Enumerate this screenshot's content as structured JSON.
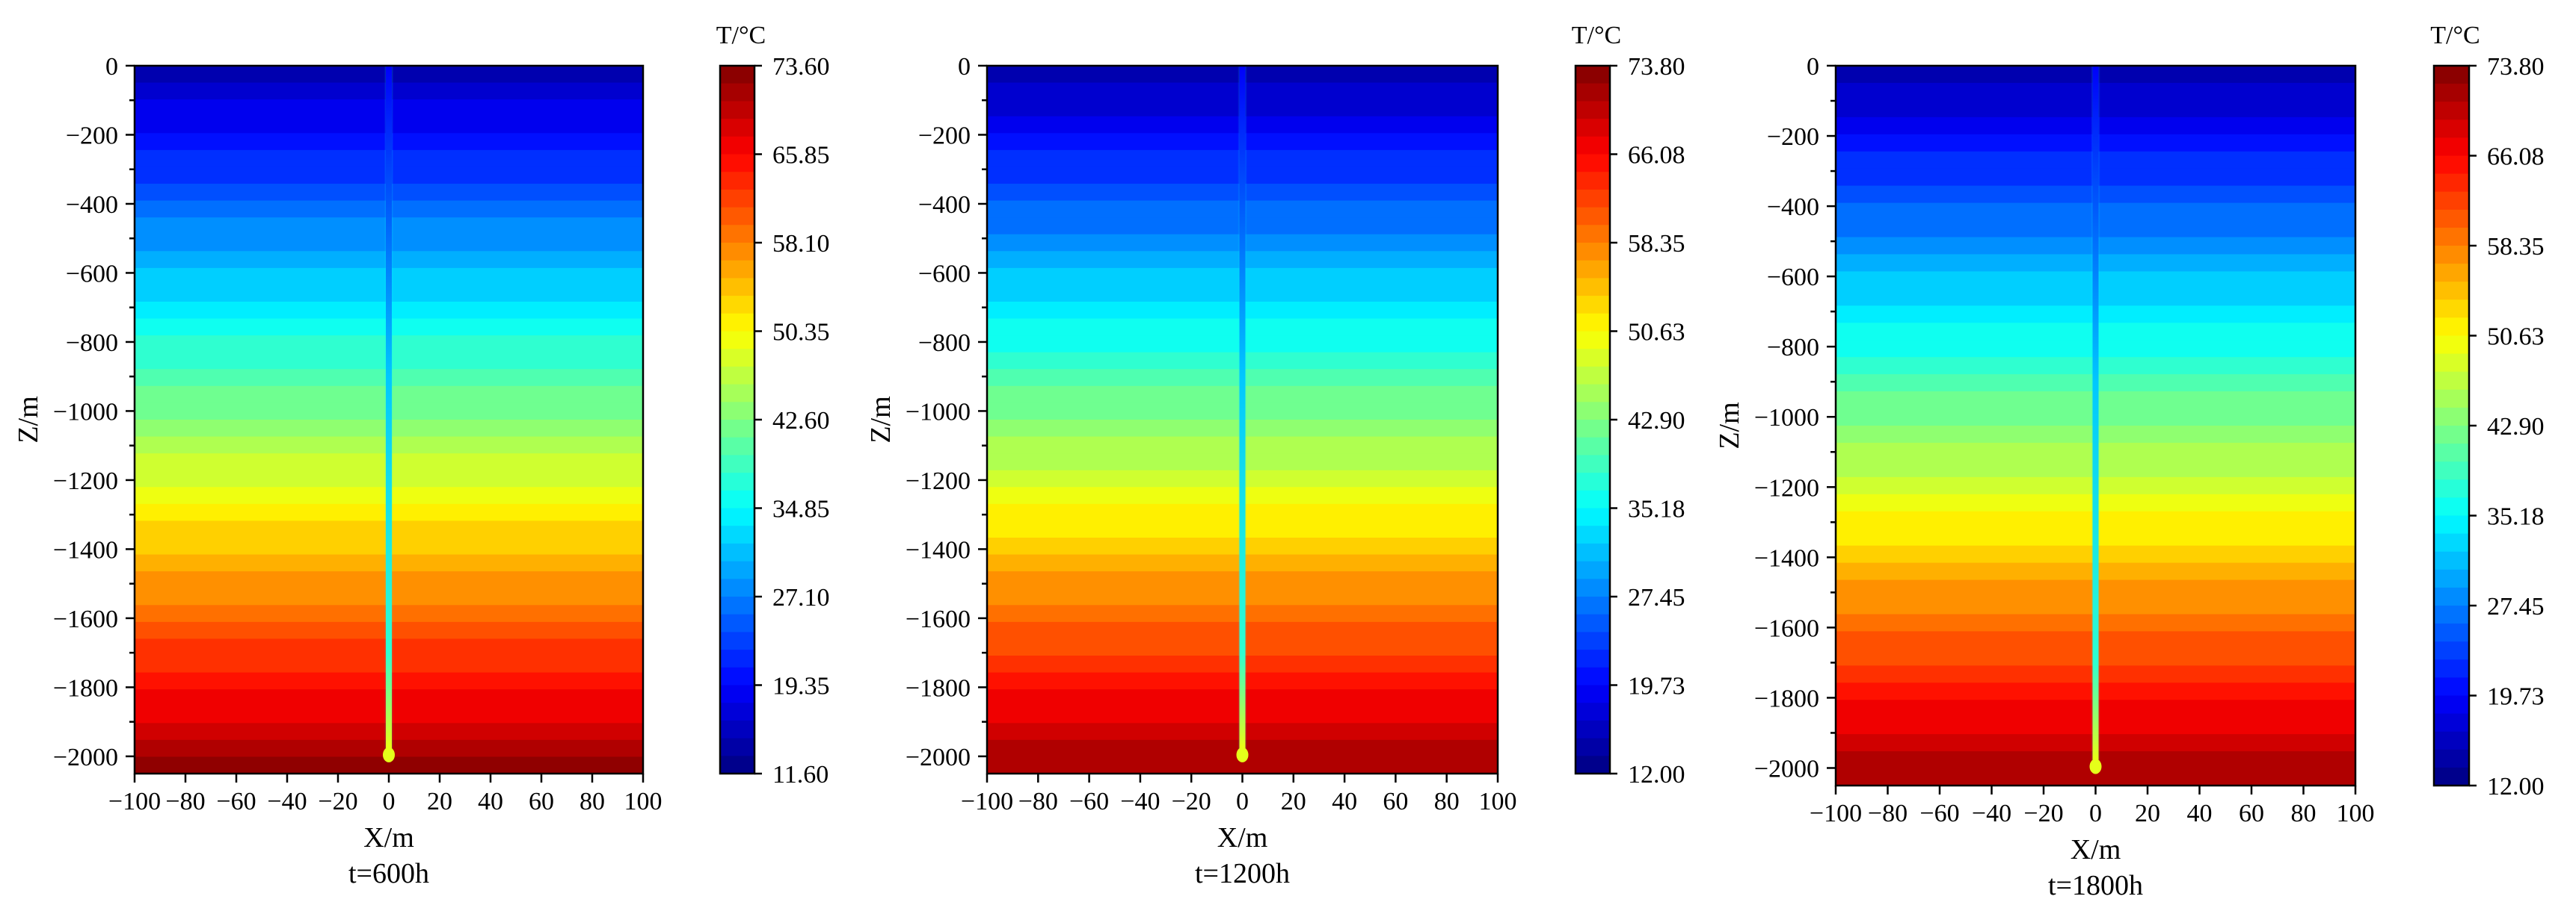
{
  "chart_data": [
    {
      "type": "heatmap",
      "title": "t=600h",
      "xlabel": "X/m",
      "ylabel": "Z/m",
      "xlim": [
        -100,
        100
      ],
      "ylim": [
        -2050,
        0
      ],
      "x_ticks": [
        -100,
        -80,
        -60,
        -40,
        -20,
        0,
        20,
        40,
        60,
        80,
        100
      ],
      "y_ticks": [
        0,
        -200,
        -400,
        -600,
        -800,
        -1000,
        -1200,
        -1400,
        -1600,
        -1800,
        -2000
      ],
      "colorbar": {
        "label": "T/°C",
        "min": 11.6,
        "max": 73.6,
        "ticks": [
          "73.60",
          "65.85",
          "58.10",
          "50.35",
          "42.60",
          "34.85",
          "27.10",
          "19.35",
          "11.60"
        ]
      },
      "well_depth": -2000,
      "shift": 0
    },
    {
      "type": "heatmap",
      "title": "t=1200h",
      "xlabel": "X/m",
      "ylabel": "Z/m",
      "xlim": [
        -100,
        100
      ],
      "ylim": [
        -2050,
        0
      ],
      "x_ticks": [
        -100,
        -80,
        -60,
        -40,
        -20,
        0,
        20,
        40,
        60,
        80,
        100
      ],
      "y_ticks": [
        0,
        -200,
        -400,
        -600,
        -800,
        -1000,
        -1200,
        -1400,
        -1600,
        -1800,
        -2000
      ],
      "colorbar": {
        "label": "T/°C",
        "min": 12.0,
        "max": 73.8,
        "ticks": [
          "73.80",
          "66.08",
          "58.35",
          "50.63",
          "42.90",
          "35.18",
          "27.45",
          "19.73",
          "12.00"
        ]
      },
      "well_depth": -2000,
      "shift": 0
    },
    {
      "type": "heatmap",
      "title": "t=1800h",
      "xlabel": "X/m",
      "ylabel": "Z/m",
      "xlim": [
        -100,
        100
      ],
      "ylim": [
        -2050,
        0
      ],
      "x_ticks": [
        -100,
        -80,
        -60,
        -40,
        -20,
        0,
        20,
        40,
        60,
        80,
        100
      ],
      "y_ticks": [
        0,
        -200,
        -400,
        -600,
        -800,
        -1000,
        -1200,
        -1400,
        -1600,
        -1800,
        -2000
      ],
      "colorbar": {
        "label": "T/°C",
        "min": 12.0,
        "max": 73.8,
        "ticks": [
          "73.80",
          "66.08",
          "58.35",
          "50.63",
          "42.90",
          "35.18",
          "27.45",
          "19.73",
          "12.00"
        ]
      },
      "well_depth": -2000,
      "shift": 1
    }
  ]
}
